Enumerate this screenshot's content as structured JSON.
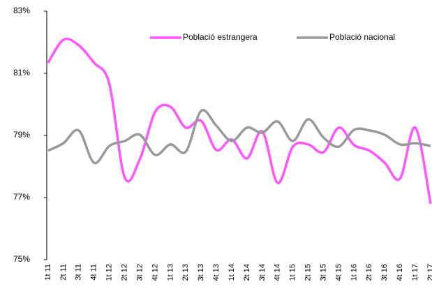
{
  "chart_data": {
    "type": "line",
    "categories": [
      "1t 11",
      "2t 11",
      "3t 11",
      "4t 11",
      "1t 12",
      "2t 12",
      "3t 12",
      "4t 12",
      "1t 13",
      "2t 13",
      "3t 13",
      "4t 13",
      "1t 14",
      "2t 14",
      "3t 14",
      "4t 14",
      "1t 15",
      "2t 15",
      "3t 15",
      "4t 15",
      "1t 16",
      "2t 16",
      "3t 16",
      "4t 16",
      "1t 17",
      "2t 17"
    ],
    "series": [
      {
        "name": "Població estrangera",
        "color": "#ff55ff",
        "values": [
          81.34,
          82.08,
          81.9,
          81.34,
          80.66,
          77.65,
          78.24,
          79.76,
          79.92,
          79.25,
          79.47,
          78.53,
          78.87,
          78.26,
          79.13,
          77.47,
          78.64,
          78.71,
          78.46,
          79.25,
          78.69,
          78.51,
          78.12,
          77.61,
          79.25,
          76.8
        ]
      },
      {
        "name": "Població nacional",
        "color": "#999999",
        "values": [
          78.51,
          78.75,
          79.16,
          78.12,
          78.66,
          78.82,
          79.02,
          78.37,
          78.71,
          78.48,
          79.79,
          79.31,
          78.82,
          79.25,
          79.09,
          79.45,
          78.82,
          79.52,
          78.93,
          78.64,
          79.18,
          79.16,
          79.02,
          78.71,
          78.75,
          78.66
        ]
      }
    ],
    "ylim": [
      75,
      83
    ],
    "yticks": [
      {
        "value": 75,
        "label": "75%"
      },
      {
        "value": 77,
        "label": "77%"
      },
      {
        "value": 79,
        "label": "79%"
      },
      {
        "value": 81,
        "label": "81%"
      },
      {
        "value": 83,
        "label": "83%"
      }
    ],
    "legend": "top-right"
  }
}
